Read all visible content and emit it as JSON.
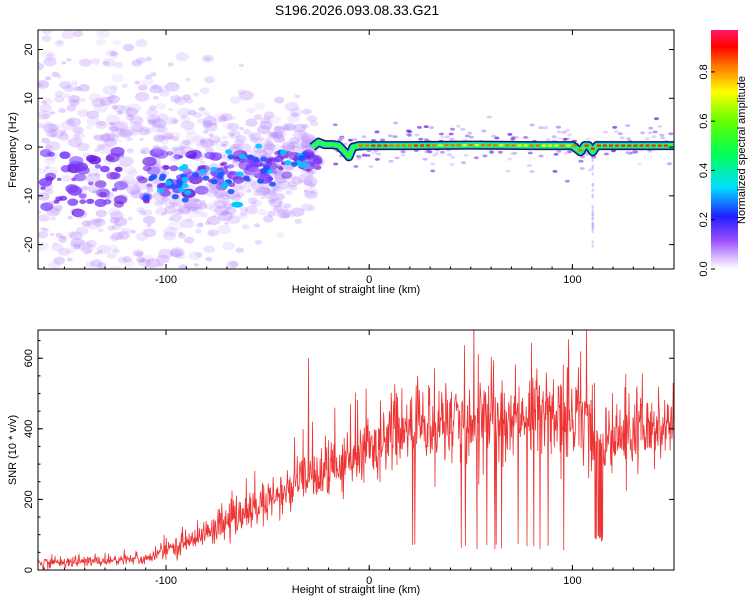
{
  "title": "S196.2026.093.08.33.G21",
  "chart_data": [
    {
      "type": "scatter",
      "panel": "spectrogram",
      "xlabel": "Height of straight line (km)",
      "ylabel": "Frequency (Hz)",
      "xlim": [
        -163,
        150
      ],
      "ylim": [
        -25,
        24
      ],
      "xticks": [
        -100,
        0,
        100
      ],
      "yticks": [
        -20,
        -10,
        0,
        10,
        20
      ],
      "xtick_labels": [
        "-100",
        "0",
        "100"
      ],
      "ytick_labels": [
        "-20",
        "-10",
        "0",
        "10",
        "20"
      ],
      "colorbar": {
        "label": "Normalized spectral amplitude",
        "range": [
          0,
          0.97
        ],
        "ticks": [
          0.0,
          0.2,
          0.4,
          0.6,
          0.8
        ],
        "tick_labels": [
          "0.0",
          "0.2",
          "0.4",
          "0.6",
          "0.8"
        ],
        "colormap": "rainbow-white-violet-blue-cyan-green-yellow-red-magenta"
      },
      "ridge": {
        "x": [
          -28,
          -25,
          -22,
          -18,
          -15,
          -12,
          -10,
          -8,
          -5,
          0,
          20,
          50,
          80,
          100,
          104,
          106,
          108,
          110,
          112,
          150
        ],
        "y": [
          0,
          1,
          0.5,
          0.5,
          0.3,
          -1,
          -2,
          0,
          0.3,
          0.3,
          0.3,
          0.4,
          0.3,
          0.3,
          -1,
          0.3,
          0.3,
          -1,
          0.3,
          0.3
        ]
      },
      "scatter_region": {
        "x_min": -163,
        "x_max": -25,
        "center_start": -8,
        "center_end": -3,
        "spread_start": 12,
        "spread_end": 3
      }
    },
    {
      "type": "line",
      "panel": "snr",
      "xlabel": "Height of straight line (km)",
      "ylabel": "SNR (10 * v/v)",
      "xlim": [
        -163,
        150
      ],
      "ylim": [
        0,
        680
      ],
      "xticks": [
        -100,
        0,
        100
      ],
      "yticks": [
        0,
        200,
        400,
        600
      ],
      "xtick_labels": [
        "-100",
        "0",
        "100"
      ],
      "ytick_labels": [
        "0",
        "200",
        "400",
        "600"
      ],
      "color": "#ee3333",
      "trend": {
        "x": [
          -163,
          -110,
          -90,
          -70,
          -50,
          -35,
          -25,
          -15,
          -5,
          0,
          10,
          20,
          30,
          60,
          90,
          100,
          105,
          112,
          120,
          150
        ],
        "y": [
          20,
          30,
          80,
          130,
          190,
          240,
          260,
          290,
          320,
          340,
          370,
          400,
          420,
          430,
          440,
          430,
          450,
          360,
          370,
          400
        ]
      },
      "spikes": [
        {
          "x": -30,
          "y": 600
        },
        {
          "x": -28,
          "y": 420
        },
        {
          "x": -17,
          "y": 460
        },
        {
          "x": -1,
          "y": 410
        },
        {
          "x": 104,
          "y": 620
        },
        {
          "x": 107,
          "y": 680
        },
        {
          "x": 111,
          "y": 530
        }
      ],
      "dropout_region": {
        "x_min": 15,
        "x_max": 100,
        "low_y": 55
      },
      "deep_dropout": {
        "x_min": 111,
        "x_max": 115,
        "low_y": 80
      }
    }
  ]
}
